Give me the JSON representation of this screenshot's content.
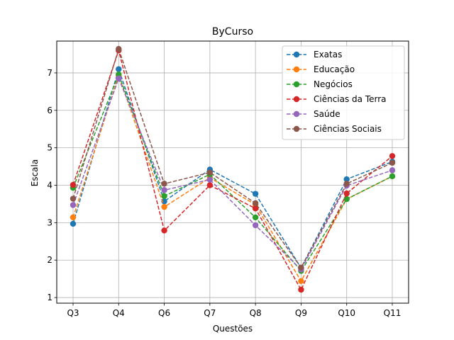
{
  "chart_data": {
    "type": "line",
    "title": "ByCurso",
    "xlabel": "Questões",
    "ylabel": "Escala",
    "categories": [
      "Q3",
      "Q4",
      "Q6",
      "Q7",
      "Q8",
      "Q9",
      "Q10",
      "Q11"
    ],
    "ylim": [
      0.85,
      7.85
    ],
    "yticks": [
      1,
      2,
      3,
      4,
      5,
      6,
      7
    ],
    "grid": true,
    "line_style": "dashed",
    "marker": "circle",
    "legend_position": "top-right",
    "series": [
      {
        "name": "Exatas",
        "color": "#1f77b4",
        "values": [
          2.97,
          7.1,
          3.57,
          4.42,
          3.77,
          1.79,
          4.16,
          4.63
        ]
      },
      {
        "name": "Educação",
        "color": "#ff7f0e",
        "values": [
          3.14,
          6.93,
          3.42,
          4.2,
          3.48,
          1.44,
          3.63,
          4.24
        ]
      },
      {
        "name": "Negócios",
        "color": "#2ca02c",
        "values": [
          3.93,
          6.96,
          3.71,
          4.29,
          3.14,
          1.71,
          3.63,
          4.24
        ]
      },
      {
        "name": "Ciências da Terra",
        "color": "#d62728",
        "values": [
          4.01,
          7.6,
          2.79,
          4.0,
          3.38,
          1.21,
          3.78,
          4.78
        ]
      },
      {
        "name": "Saúde",
        "color": "#9467bd",
        "values": [
          3.47,
          6.85,
          3.87,
          4.15,
          2.93,
          1.75,
          3.99,
          4.4
        ]
      },
      {
        "name": "Ciências Sociais",
        "color": "#8c564b",
        "values": [
          3.64,
          7.64,
          4.04,
          4.34,
          3.52,
          1.8,
          4.04,
          4.6
        ]
      }
    ]
  }
}
